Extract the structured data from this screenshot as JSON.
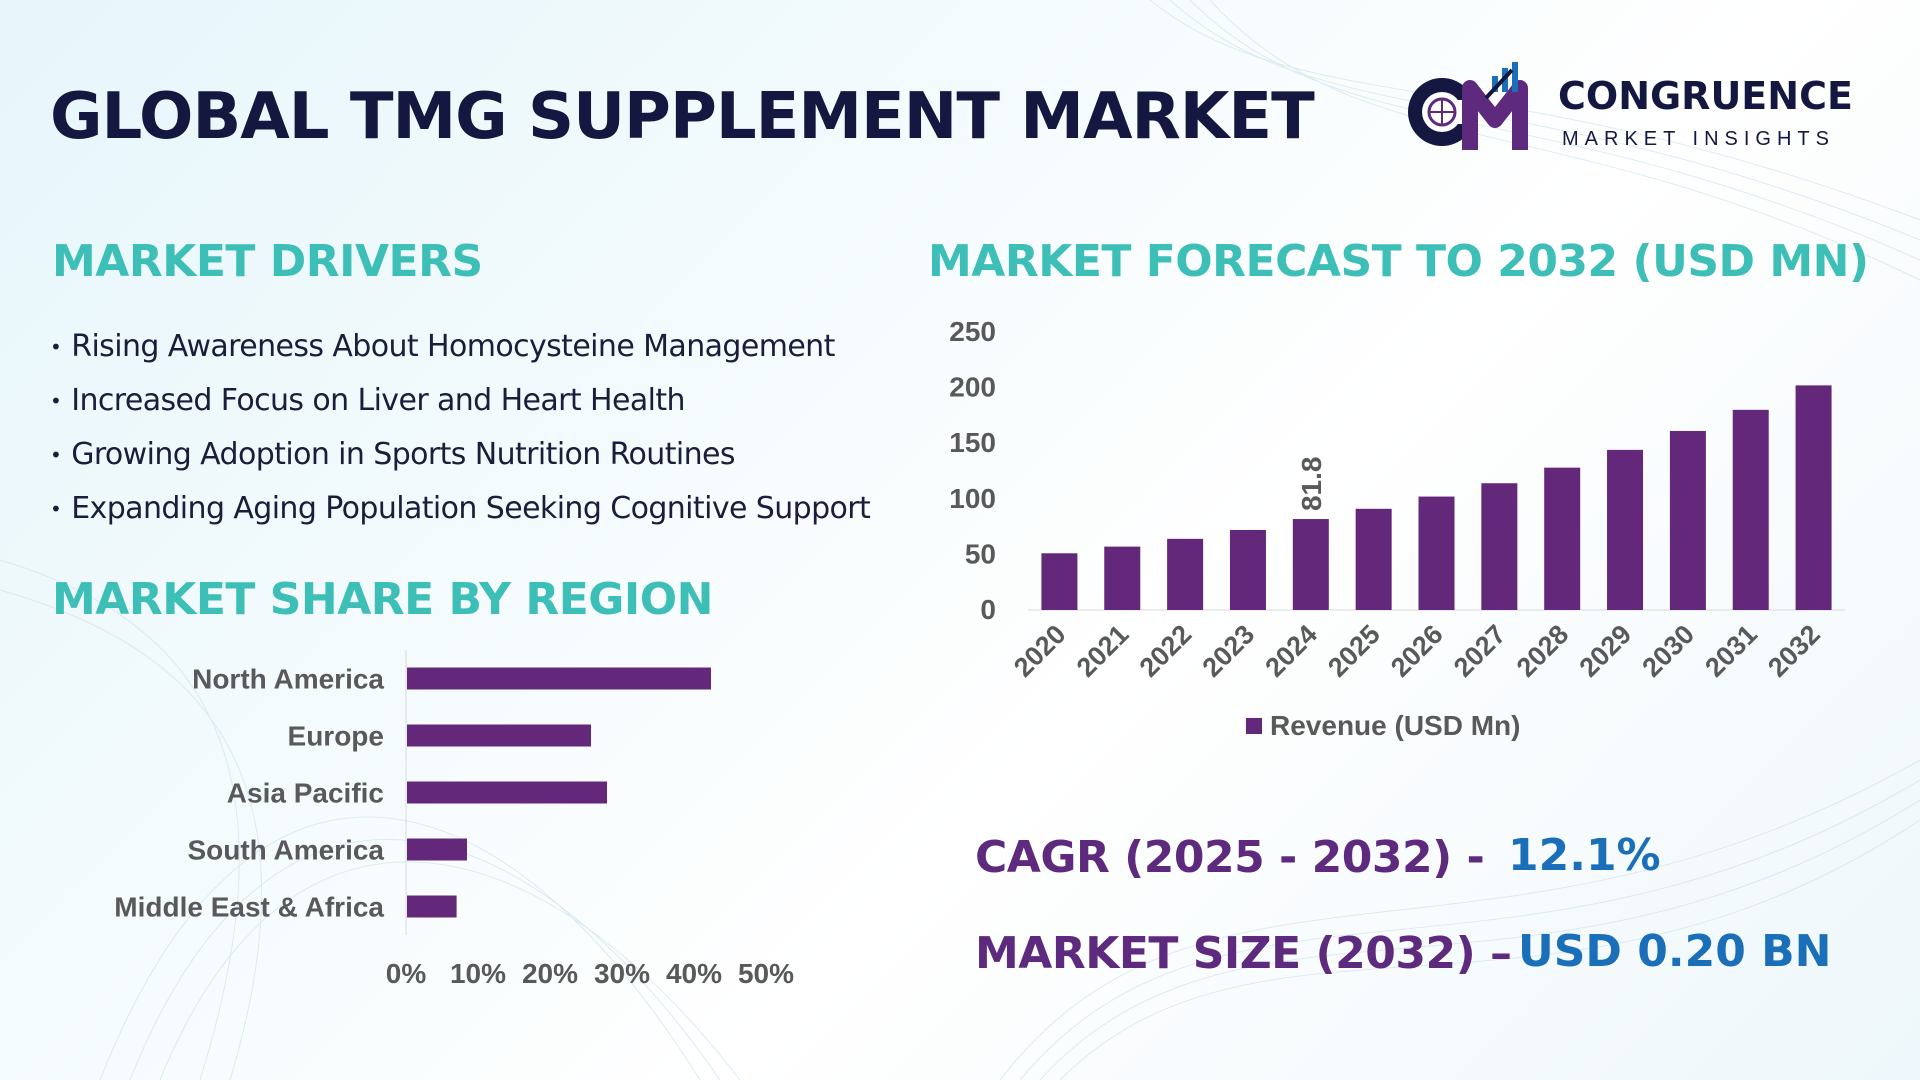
{
  "header": {
    "title": "GLOBAL TMG SUPPLEMENT MARKET",
    "logo_initials": "CM",
    "logo_name": "CONGRUENCE",
    "logo_subtitle": "MARKET INSIGHTS"
  },
  "drivers": {
    "heading": "MARKET DRIVERS",
    "items": [
      "Rising Awareness About Homocysteine Management",
      "Increased Focus on Liver and Heart Health",
      "Growing Adoption in Sports Nutrition Routines",
      "Expanding Aging Population Seeking Cognitive Support"
    ]
  },
  "region": {
    "heading": "MARKET SHARE BY REGION"
  },
  "forecast": {
    "heading": "MARKET FORECAST TO 2032 (USD MN)"
  },
  "stats": {
    "cagr_label": "CAGR (2025 - 2032) -",
    "cagr_value": "12.1%",
    "size_label": "MARKET SIZE (2032) –",
    "size_value": "USD 0.20 BN"
  },
  "colors": {
    "bar": "#64287a",
    "heading": "#3dbfb8",
    "title": "#14173f",
    "stat_label": "#5e2a7e",
    "stat_value": "#1a6fb8",
    "tick_text": "#595959"
  },
  "chart_data": [
    {
      "type": "bar",
      "orientation": "horizontal",
      "title": "MARKET SHARE BY REGION",
      "categories": [
        "North America",
        "Europe",
        "Asia Pacific",
        "South America",
        "Middle East & Africa"
      ],
      "values": [
        38,
        23,
        25,
        7.5,
        6.2
      ],
      "unit": "%",
      "xlim": [
        0,
        50
      ],
      "x_ticks": [
        "0%",
        "10%",
        "20%",
        "30%",
        "40%",
        "50%"
      ],
      "grid": false
    },
    {
      "type": "bar",
      "title": "MARKET FORECAST TO 2032 (USD MN)",
      "categories": [
        "2020",
        "2021",
        "2022",
        "2023",
        "2024",
        "2025",
        "2026",
        "2027",
        "2028",
        "2029",
        "2030",
        "2031",
        "2032"
      ],
      "series": [
        {
          "name": "Revenue (USD Mn)",
          "values": [
            51,
            57,
            64,
            72,
            81.8,
            91,
            102,
            114,
            128,
            144,
            161,
            180,
            202
          ]
        }
      ],
      "data_labels": [
        {
          "category": "2024",
          "text": "81.8"
        }
      ],
      "ylim": [
        0,
        250
      ],
      "y_ticks": [
        "0",
        "50",
        "100",
        "150",
        "200",
        "250"
      ],
      "legend": "bottom",
      "grid": false
    }
  ]
}
